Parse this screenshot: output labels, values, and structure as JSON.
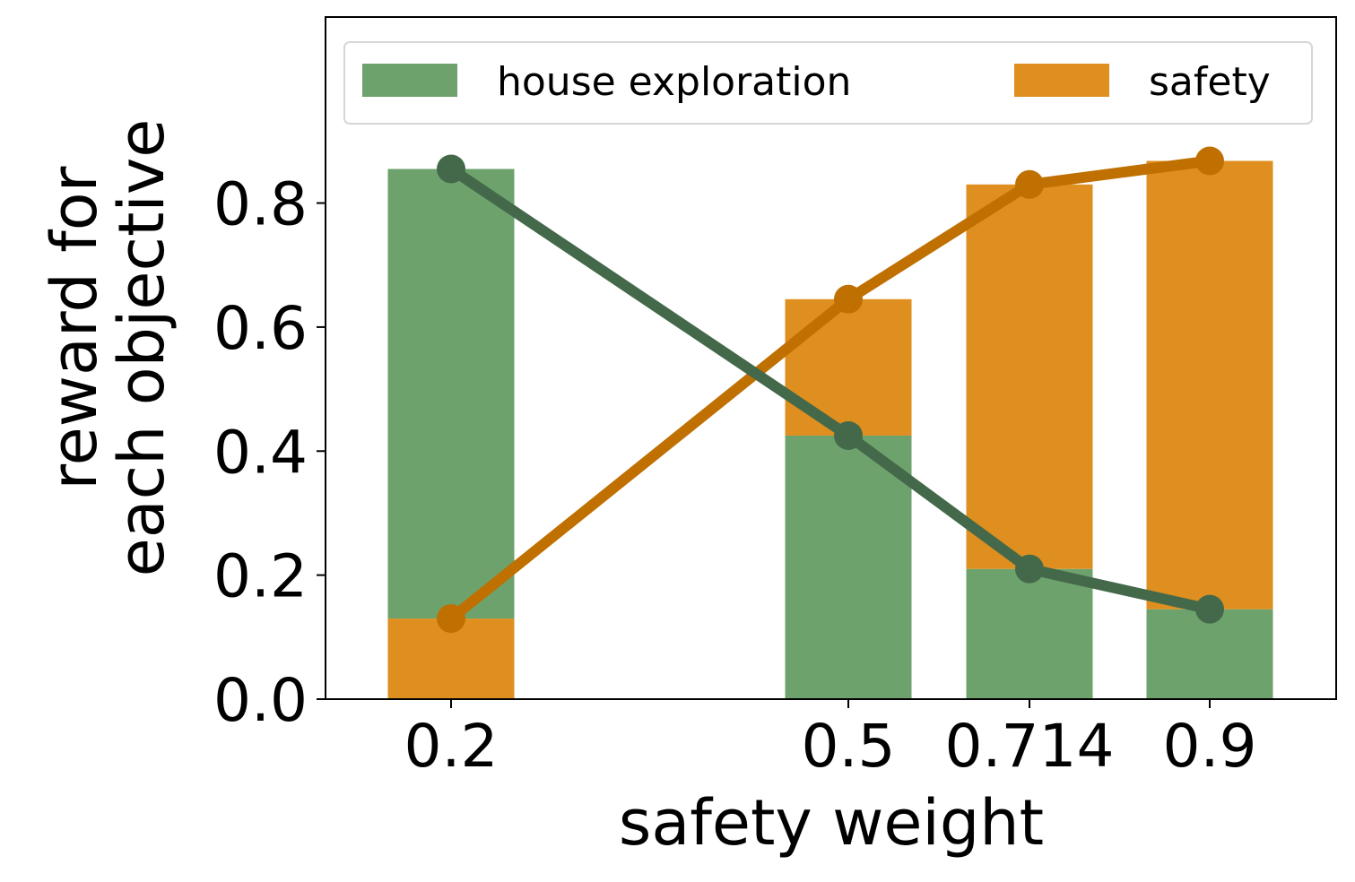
{
  "chart_data": {
    "type": "bar",
    "subtype": "stacked bar with line overlay",
    "title": "",
    "xlabel": "safety weight",
    "ylabel_lines": [
      "reward for",
      "each objective"
    ],
    "categories": [
      "0.2",
      "0.5",
      "0.714",
      "0.9"
    ],
    "x": [
      0.2,
      0.5,
      0.714,
      0.9
    ],
    "ylim": [
      0,
      1.1
    ],
    "yticks": [
      0.0,
      0.2,
      0.4,
      0.6,
      0.8
    ],
    "ytick_labels": [
      "0.0",
      "0.2",
      "0.4",
      "0.6",
      "0.8"
    ],
    "grid": false,
    "legend_position": "top",
    "series": [
      {
        "name": "house exploration",
        "values": [
          0.855,
          0.425,
          0.21,
          0.145
        ],
        "bar_color": "#6da26d",
        "line_color": "#44694a"
      },
      {
        "name": "safety",
        "values": [
          0.13,
          0.645,
          0.83,
          0.868
        ],
        "bar_color": "#de8f1f",
        "line_color": "#bf7000"
      }
    ],
    "bar_stacks": [
      {
        "bottom": "safety",
        "top": "house exploration"
      },
      {
        "bottom": "house exploration",
        "top": "safety"
      },
      {
        "bottom": "house exploration",
        "top": "safety"
      },
      {
        "bottom": "house exploration",
        "top": "safety"
      }
    ]
  }
}
